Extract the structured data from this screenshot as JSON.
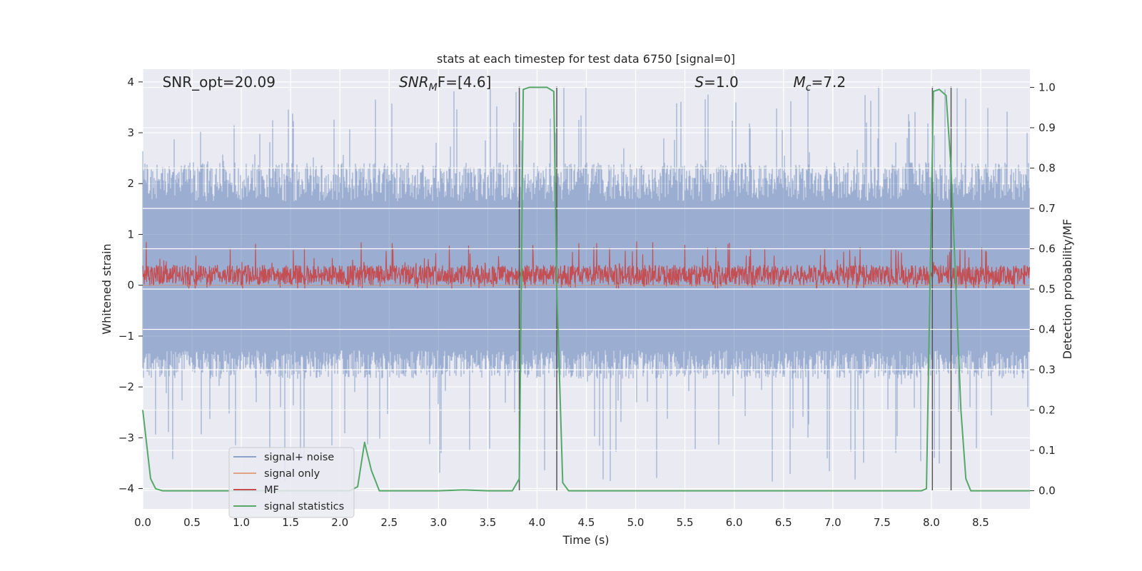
{
  "chart_data": {
    "type": "line",
    "title": "stats at each timestep for test data 6750 [signal=0]",
    "xlabel": "Time (s)",
    "ylabel": "Whitened strain",
    "ylabel_right": "Detection probability/MF",
    "xlim": [
      0.0,
      9.0
    ],
    "ylim": [
      -4.4,
      4.25
    ],
    "ylim_right": [
      -0.045,
      1.045
    ],
    "x_ticks": [
      "0.0",
      "0.5",
      "1.0",
      "1.5",
      "2.0",
      "2.5",
      "3.0",
      "3.5",
      "4.0",
      "4.5",
      "5.0",
      "5.5",
      "6.0",
      "6.5",
      "7.0",
      "7.5",
      "8.0",
      "8.5"
    ],
    "y_ticks": [
      "4",
      "3",
      "2",
      "1",
      "0",
      "−1",
      "−2",
      "−3",
      "−4"
    ],
    "y_ticks_right": [
      "1.0",
      "0.9",
      "0.8",
      "0.7",
      "0.6",
      "0.5",
      "0.4",
      "0.3",
      "0.2",
      "0.1",
      "0.0"
    ],
    "grid": true,
    "legend_position": "lower-left",
    "annotations": [
      {
        "id": "snr_opt",
        "text": "SNR_opt=20.09",
        "x": 0.2
      },
      {
        "id": "snr_mf",
        "sym": "SNR",
        "sub": "M",
        "rest": "F=[4.6]",
        "x": 2.6
      },
      {
        "id": "s_val",
        "sym": "S",
        "rest": "=1.0",
        "x": 5.6
      },
      {
        "id": "mc_val",
        "sym": "M",
        "sub": "c",
        "rest": "=7.2",
        "x": 6.6
      }
    ],
    "vertical_markers": [
      3.82,
      4.2,
      8.01,
      8.2
    ],
    "series": [
      {
        "name": "signal+ noise",
        "color": "#4c72b0",
        "kind": "noise",
        "approx_range": [
          -4.0,
          4.0
        ],
        "typical_band": [
          -1.6,
          2.2
        ]
      },
      {
        "name": "signal only",
        "color": "#dd8452",
        "kind": "flat",
        "value": 0.0
      },
      {
        "name": "MF",
        "color": "#c44e52",
        "kind": "noise",
        "axis": "right",
        "approx_range": [
          0.5,
          0.62
        ],
        "typical_band": [
          0.51,
          0.56
        ]
      },
      {
        "name": "signal statistics",
        "color": "#55a868",
        "kind": "line",
        "axis": "right",
        "x": [
          0.0,
          0.08,
          0.13,
          0.2,
          0.3,
          0.5,
          1.0,
          1.5,
          2.0,
          2.1,
          2.18,
          2.25,
          2.32,
          2.4,
          2.5,
          3.0,
          3.25,
          3.5,
          3.75,
          3.82,
          3.86,
          3.92,
          4.0,
          4.1,
          4.17,
          4.2,
          4.26,
          4.32,
          4.4,
          5.0,
          6.0,
          7.0,
          7.5,
          7.9,
          7.95,
          8.02,
          8.08,
          8.15,
          8.2,
          8.25,
          8.3,
          8.35,
          8.4,
          8.5,
          9.0
        ],
        "y": [
          0.2,
          0.03,
          0.005,
          0.0,
          0.0,
          0.0,
          0.0,
          0.0,
          0.0,
          0.0,
          0.01,
          0.12,
          0.05,
          0.0,
          0.0,
          0.0,
          0.002,
          0.0,
          0.0,
          0.03,
          0.995,
          1.0,
          1.0,
          1.0,
          0.99,
          0.5,
          0.02,
          0.0,
          0.0,
          0.0,
          0.0,
          0.0,
          0.0,
          0.0,
          0.005,
          0.99,
          0.995,
          0.98,
          0.8,
          0.5,
          0.2,
          0.03,
          0.0,
          0.0,
          0.0
        ]
      }
    ]
  }
}
